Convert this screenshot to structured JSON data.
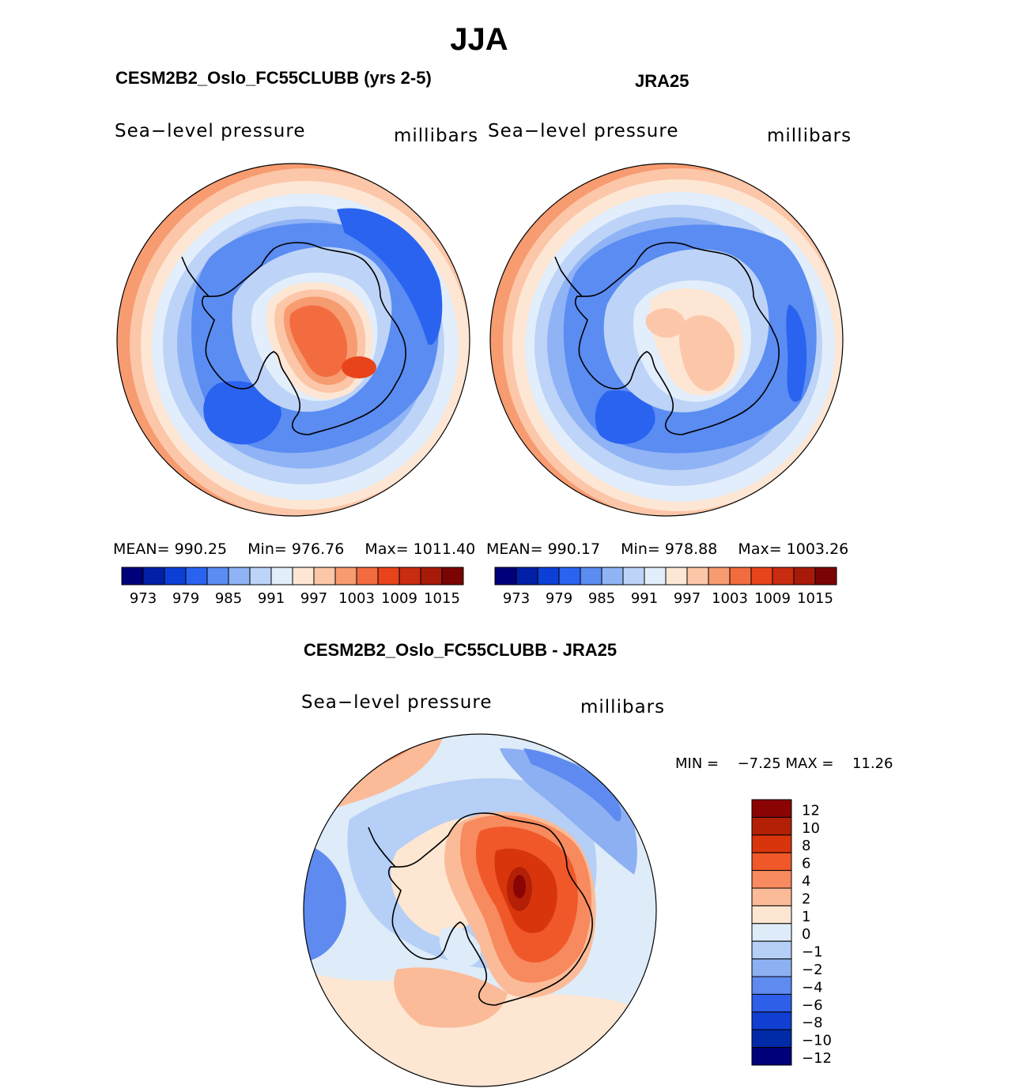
{
  "title": "JJA",
  "panels": [
    {
      "id": "model",
      "header": "CESM2B2_Oslo_FC55CLUBB (yrs 2-5)",
      "variable": "Sea−level pressure",
      "units": "millibars",
      "stats": {
        "mean_label": "MEAN=",
        "mean": "990.25",
        "min_label": "Min=",
        "min": "976.76",
        "max_label": "Max=",
        "max": "1011.40"
      }
    },
    {
      "id": "obs",
      "header": "JRA25",
      "variable": "Sea−level pressure",
      "units": "millibars",
      "stats": {
        "mean_label": "MEAN=",
        "mean": "990.17",
        "min_label": "Min=",
        "min": "978.88",
        "max_label": "Max=",
        "max": "1003.26"
      }
    }
  ],
  "abs_colorbar": {
    "colors": [
      "#00007a",
      "#0020a8",
      "#0b3fd6",
      "#2a63f0",
      "#5a8cf2",
      "#8fb3f5",
      "#bdd3f7",
      "#e2eefb",
      "#fde6d4",
      "#fcc6a8",
      "#f79b70",
      "#f26c40",
      "#e8431b",
      "#c92c10",
      "#a81a08",
      "#7a0303"
    ],
    "labels": [
      "973",
      "979",
      "985",
      "991",
      "997",
      "1003",
      "1009",
      "1015"
    ]
  },
  "diff_panel": {
    "header": "CESM2B2_Oslo_FC55CLUBB - JRA25",
    "variable": "Sea−level pressure",
    "units": "millibars",
    "min_label": "MIN =",
    "min": "−7.25",
    "max_label": "MAX =",
    "max": "11.26"
  },
  "diff_colorbar": {
    "colors": [
      "#8a0404",
      "#b32006",
      "#d9350c",
      "#f0582a",
      "#f78a5e",
      "#fbbb98",
      "#fde6d2",
      "#deebf8",
      "#b5cff6",
      "#8cb0f2",
      "#5f8bf0",
      "#2e5fe8",
      "#103fd2",
      "#002aa8",
      "#00007a"
    ],
    "labels": [
      "12",
      "10",
      "8",
      "6",
      "4",
      "2",
      "1",
      "0",
      "−1",
      "−2",
      "−4",
      "−6",
      "−8",
      "−10",
      "−12"
    ]
  }
}
